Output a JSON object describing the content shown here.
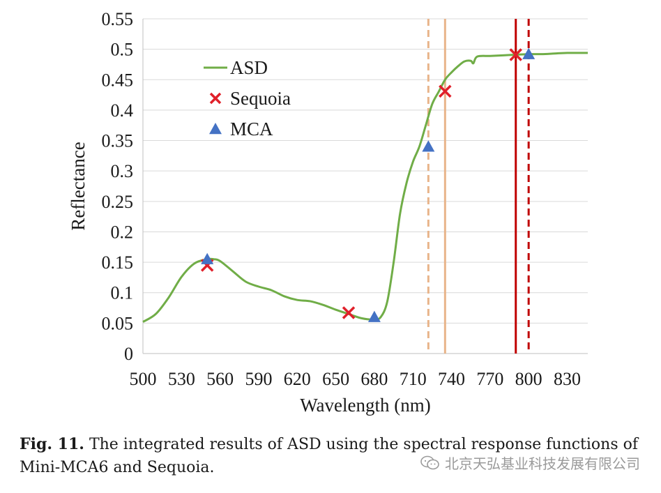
{
  "chart_data": {
    "type": "line",
    "xlabel": "Wavelength (nm)",
    "ylabel": "Reflectance",
    "xlim": [
      500,
      846
    ],
    "ylim": [
      0,
      0.55
    ],
    "x_ticks": [
      500,
      530,
      560,
      590,
      620,
      650,
      680,
      710,
      740,
      770,
      800,
      830
    ],
    "y_ticks": [
      0,
      0.05,
      0.1,
      0.15,
      0.2,
      0.25,
      0.3,
      0.35,
      0.4,
      0.45,
      0.5,
      0.55
    ],
    "y_tick_labels": [
      "0",
      "0.05",
      "0.1",
      "0.15",
      "0.2",
      "0.25",
      "0.3",
      "0.35",
      "0.4",
      "0.45",
      "0.5",
      "0.55"
    ],
    "grid": "horizontal",
    "legend_position": "top-left",
    "series": [
      {
        "name": "ASD",
        "kind": "line",
        "color": "#70ad47",
        "x": [
          500,
          510,
          520,
          530,
          540,
          550,
          555,
          560,
          570,
          580,
          590,
          600,
          610,
          620,
          630,
          640,
          650,
          660,
          670,
          680,
          685,
          690,
          695,
          700,
          705,
          710,
          715,
          720,
          725,
          730,
          735,
          740,
          745,
          750,
          755,
          757,
          760,
          770,
          780,
          790,
          800,
          810,
          820,
          830,
          846
        ],
        "y": [
          0.052,
          0.065,
          0.092,
          0.126,
          0.148,
          0.155,
          0.155,
          0.152,
          0.135,
          0.118,
          0.11,
          0.104,
          0.094,
          0.088,
          0.086,
          0.08,
          0.072,
          0.065,
          0.058,
          0.056,
          0.06,
          0.085,
          0.15,
          0.23,
          0.28,
          0.315,
          0.34,
          0.375,
          0.41,
          0.43,
          0.45,
          0.462,
          0.472,
          0.48,
          0.481,
          0.477,
          0.488,
          0.489,
          0.49,
          0.491,
          0.492,
          0.492,
          0.493,
          0.494,
          0.494
        ]
      },
      {
        "name": "Sequoia",
        "kind": "scatter",
        "marker": "x",
        "color": "#e0202a",
        "x": [
          550,
          660,
          735,
          790
        ],
        "y": [
          0.145,
          0.067,
          0.431,
          0.491
        ]
      },
      {
        "name": "MCA",
        "kind": "scatter",
        "marker": "triangle",
        "color": "#4472c4",
        "x": [
          550,
          680,
          722,
          800
        ],
        "y": [
          0.155,
          0.06,
          0.34,
          0.492
        ]
      }
    ],
    "vertical_lines": [
      {
        "x": 722,
        "color": "#e8b48a",
        "style": "dashed"
      },
      {
        "x": 735,
        "color": "#e8b48a",
        "style": "solid"
      },
      {
        "x": 790,
        "color": "#c00000",
        "style": "solid"
      },
      {
        "x": 800,
        "color": "#c00000",
        "style": "dashed"
      }
    ]
  },
  "caption": {
    "label": "Fig. 11.",
    "text": " The integrated results of ASD using the spectral response functions of Mini-MCA6 and Sequoia."
  },
  "watermark": {
    "text": "北京天弘基业科技发展有限公司",
    "icon": "wechat-icon"
  }
}
